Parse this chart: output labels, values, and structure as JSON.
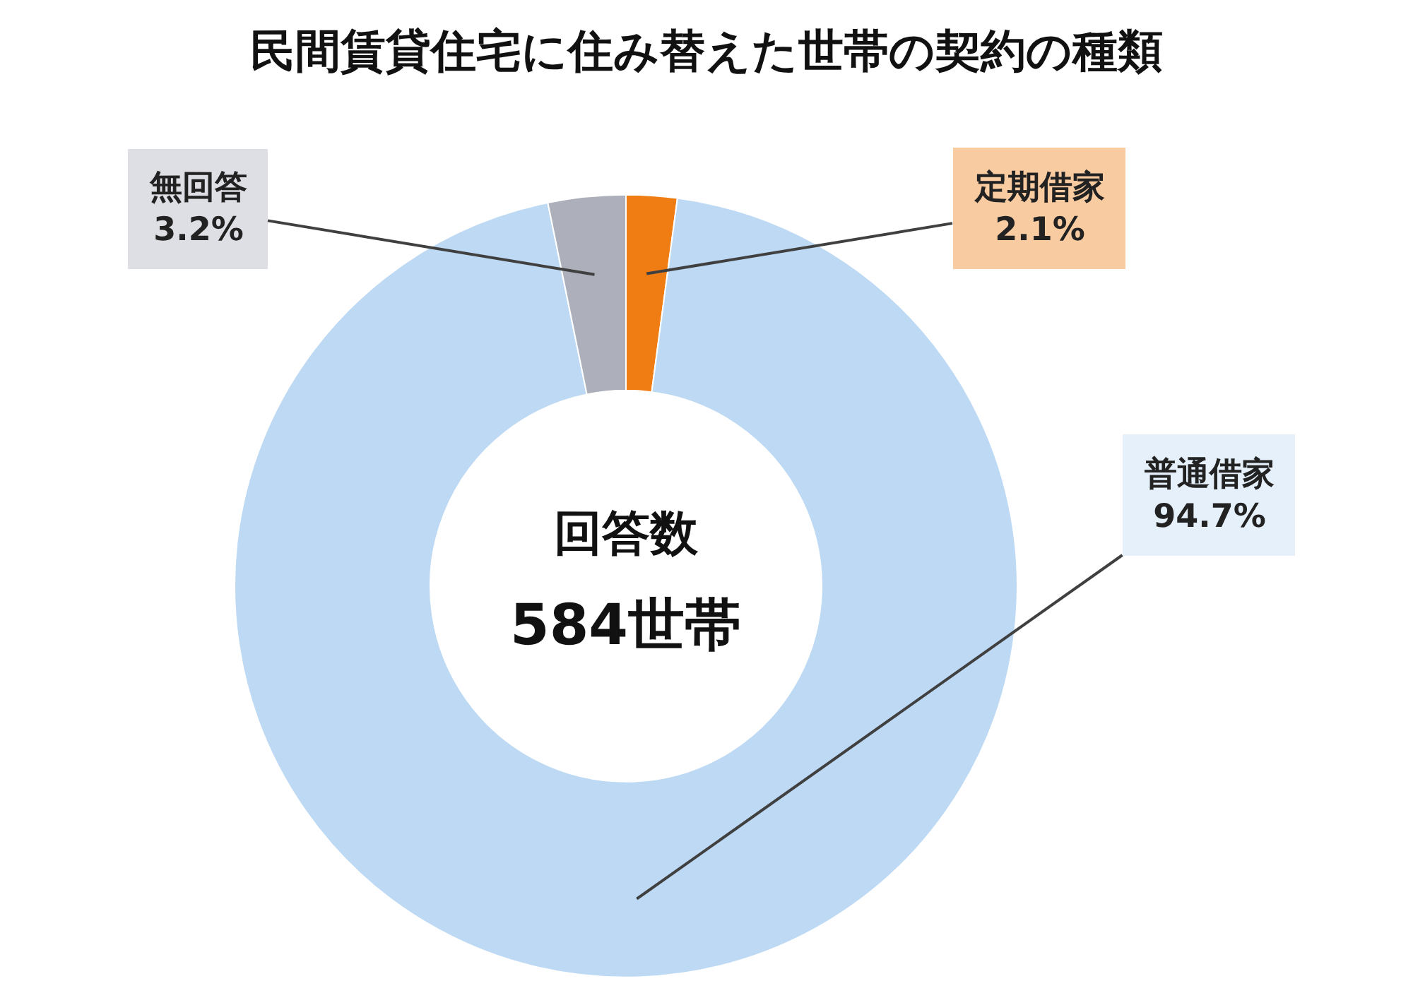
{
  "chart_data": {
    "type": "donut",
    "title": "民間賃貸住宅に住み替えた世帯の契約の種類",
    "categories": [
      "定期借家",
      "普通借家",
      "無回答"
    ],
    "values": [
      2.1,
      94.7,
      3.2
    ],
    "value_labels": [
      "2.1%",
      "94.7%",
      "3.2%"
    ],
    "colors": [
      "#f07c14",
      "#bdd9f4",
      "#adb0bb"
    ],
    "annotations": [
      "回答数",
      "584世帯"
    ],
    "legend": false
  }
}
